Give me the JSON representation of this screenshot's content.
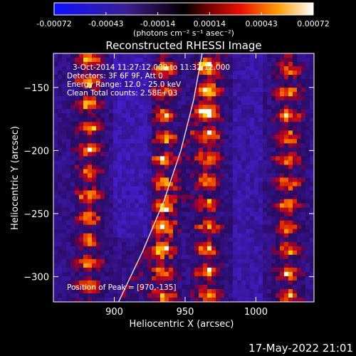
{
  "colorbar": {
    "ticks": [
      "-0.00072",
      "-0.00043",
      "-0.00014",
      "0.00014",
      "0.00043",
      "0.00072"
    ],
    "units_label": "(photons cm⁻² s⁻¹ asec⁻²)",
    "min": -0.00072,
    "max": 0.00072
  },
  "annotations": {
    "time_range": "3-Oct-2014 11:27:12.000 to 11:32:12.000",
    "detectors": "Detectors: 3F 6F 9F, Att 0",
    "energy": "Energy Range: 12.0 - 25.0 keV",
    "clean": "Clean    Total counts: 2.58E+03",
    "peak": "Position of Peak = [970,-135]"
  },
  "footer": {
    "date": "17-May-2022 21:01"
  },
  "chart_data": {
    "type": "heatmap",
    "title": "Reconstructed RHESSI Image",
    "xlabel": "Heliocentric X (arcsec)",
    "ylabel": "Heliocentric Y (arcsec)",
    "xlim": [
      857,
      1041
    ],
    "ylim": [
      -320,
      -123
    ],
    "xticks": [
      900,
      950,
      1000
    ],
    "yticks": [
      -150,
      -200,
      -250,
      -300
    ],
    "peak": [
      970,
      -135
    ],
    "colormap": "rhessi-red-temperature",
    "limb_curve": [
      [
        903,
        -320
      ],
      [
        920,
        -280
      ],
      [
        935,
        -240
      ],
      [
        947,
        -200
      ],
      [
        956,
        -160
      ],
      [
        962,
        -123
      ]
    ],
    "bright_columns_x": [
      882,
      935,
      966,
      1023
    ]
  }
}
